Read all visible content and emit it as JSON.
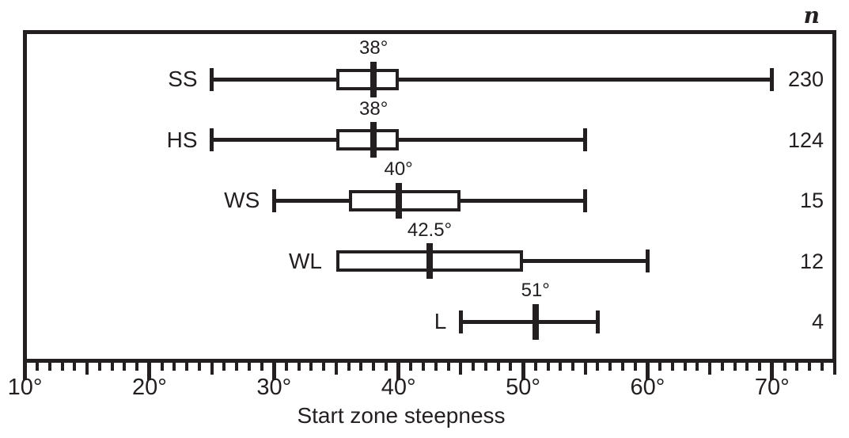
{
  "chart_data": {
    "type": "boxplot",
    "orientation": "horizontal",
    "title": "",
    "xlabel": "Start zone steepness",
    "n_column_header": "n",
    "x_axis": {
      "min": 10,
      "max": 75,
      "unit": "°",
      "minor_tick_step": 1,
      "medium_tick_step": 5,
      "major_tick_step": 10,
      "tick_labels": [
        "10°",
        "20°",
        "30°",
        "40°",
        "50°",
        "60°",
        "70°"
      ],
      "tick_label_values": [
        10,
        20,
        30,
        40,
        50,
        60,
        70
      ]
    },
    "series": [
      {
        "label": "SS",
        "n": 230,
        "min": 25,
        "q1": 35,
        "median": 38,
        "q3": 40,
        "max": 70,
        "median_label": "38°",
        "has_box": true,
        "left_cap": true,
        "right_cap": true
      },
      {
        "label": "HS",
        "n": 124,
        "min": 25,
        "q1": 35,
        "median": 38,
        "q3": 40,
        "max": 55,
        "median_label": "38°",
        "has_box": true,
        "left_cap": true,
        "right_cap": true
      },
      {
        "label": "WS",
        "n": 15,
        "min": 30,
        "q1": 36,
        "median": 40,
        "q3": 45,
        "max": 55,
        "median_label": "40°",
        "has_box": true,
        "left_cap": true,
        "right_cap": true
      },
      {
        "label": "WL",
        "n": 12,
        "min": 35,
        "q1": 35,
        "median": 42.5,
        "q3": 50,
        "max": 60,
        "median_label": "42.5°",
        "has_box": true,
        "left_cap": false,
        "right_cap": true
      },
      {
        "label": "L",
        "n": 4,
        "min": 45,
        "median": 51,
        "max": 56,
        "median_label": "51°",
        "has_box": false,
        "left_cap": true,
        "right_cap": true
      }
    ],
    "colors": {
      "ink": "#231f20",
      "background": "#ffffff"
    }
  }
}
